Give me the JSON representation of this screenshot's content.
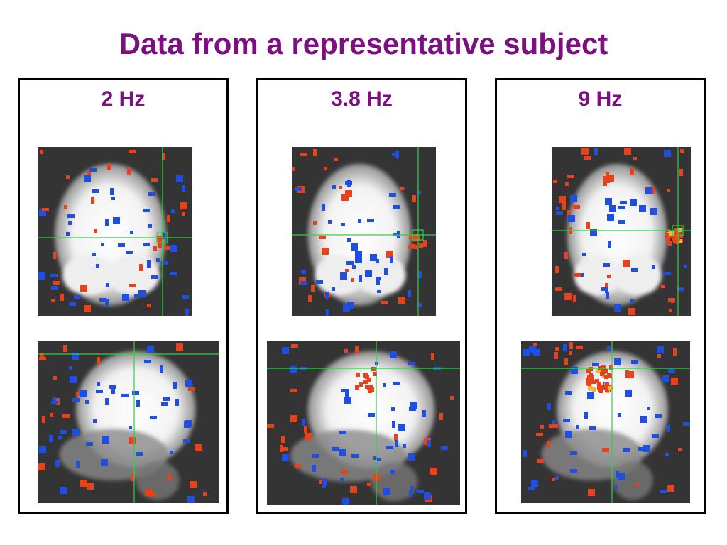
{
  "title": "Data from a representative subject",
  "colors": {
    "title": "#7b1180",
    "scan_background": "#343434",
    "activation_positive": "#e8421c",
    "activation_strong": "#f4b83a",
    "activation_negative": "#1f4fe0",
    "crosshair": "#27d63b"
  },
  "panels": [
    {
      "label": "2 Hz"
    },
    {
      "label": "3.8 Hz"
    },
    {
      "label": "9 Hz"
    }
  ]
}
